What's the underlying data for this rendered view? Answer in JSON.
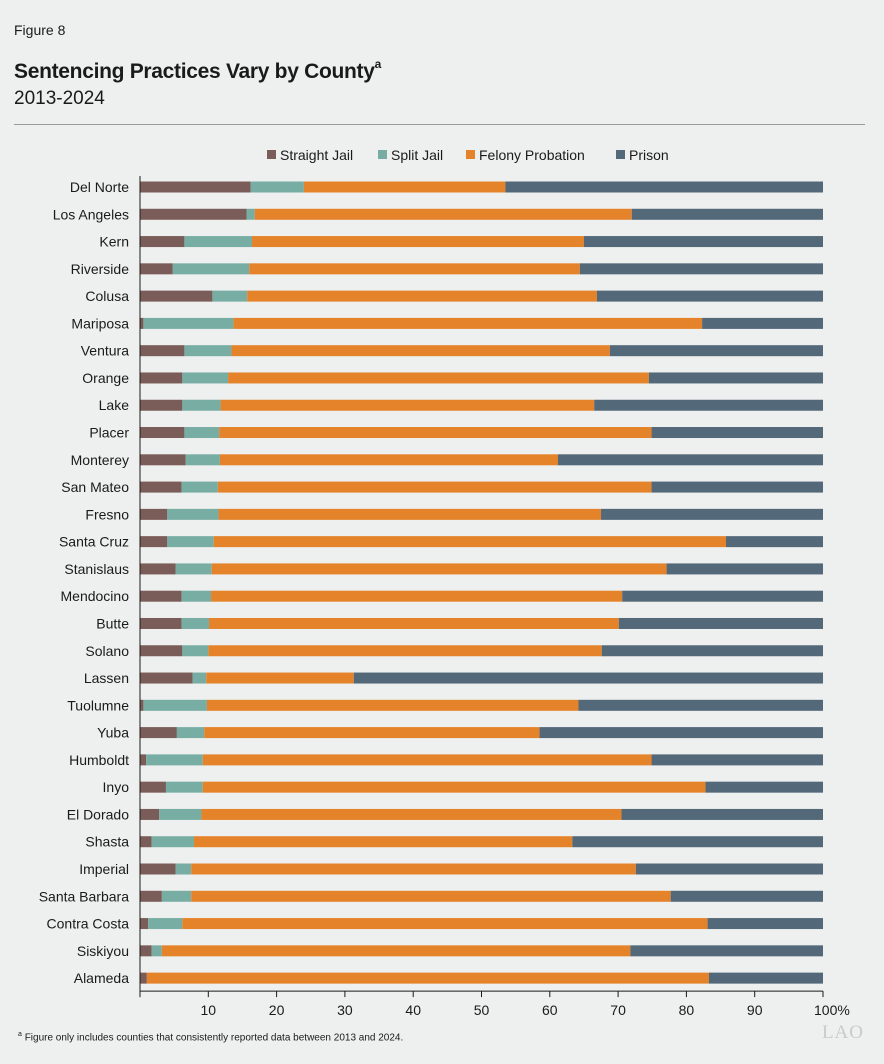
{
  "figure_label": "Figure 8",
  "title": "Sentencing Practices Vary by County",
  "title_superscript": "a",
  "subtitle": "2013-2024",
  "footnote_marker": "a",
  "footnote": "Figure only includes counties that consistently reported data between 2013 and 2024.",
  "logo": "LAO",
  "chart_data": {
    "type": "bar",
    "orientation": "horizontal",
    "stacked": true,
    "categories": [
      "Del Norte",
      "Los Angeles",
      "Kern",
      "Riverside",
      "Colusa",
      "Mariposa",
      "Ventura",
      "Orange",
      "Lake",
      "Placer",
      "Monterey",
      "San Mateo",
      "Fresno",
      "Santa Cruz",
      "Stanislaus",
      "Mendocino",
      "Butte",
      "Solano",
      "Lassen",
      "Tuolumne",
      "Yuba",
      "Humboldt",
      "Inyo",
      "El Dorado",
      "Shasta",
      "Imperial",
      "Santa Barbara",
      "Contra Costa",
      "Siskiyou",
      "Alameda"
    ],
    "series": [
      {
        "name": "Straight Jail",
        "color": "#7a5c58",
        "values": [
          16.2,
          15.6,
          6.5,
          4.8,
          10.6,
          0.5,
          6.5,
          6.2,
          6.2,
          6.5,
          6.7,
          6.1,
          4.0,
          4.0,
          5.2,
          6.1,
          6.1,
          6.2,
          7.7,
          0.5,
          5.4,
          0.9,
          3.8,
          2.8,
          1.7,
          5.2,
          3.2,
          1.2,
          1.7,
          1.0
        ]
      },
      {
        "name": "Split Jail",
        "color": "#78ada4",
        "values": [
          7.8,
          1.2,
          9.9,
          11.2,
          5.1,
          13.2,
          6.9,
          6.7,
          5.6,
          5.1,
          5.0,
          5.3,
          7.5,
          6.8,
          5.3,
          4.3,
          4.0,
          3.8,
          2.0,
          9.3,
          4.0,
          8.3,
          5.4,
          6.2,
          6.2,
          2.3,
          4.3,
          5.0,
          1.5,
          0.0
        ]
      },
      {
        "name": "Felony Probation",
        "color": "#e5832a",
        "values": [
          29.5,
          55.2,
          48.6,
          48.4,
          51.2,
          68.6,
          55.4,
          61.6,
          54.7,
          63.3,
          49.5,
          63.5,
          56.0,
          75.0,
          66.6,
          60.2,
          60.0,
          57.6,
          21.6,
          54.4,
          49.1,
          65.7,
          73.6,
          61.5,
          55.4,
          65.1,
          70.2,
          76.9,
          68.6,
          82.3
        ]
      },
      {
        "name": "Prison",
        "color": "#536878",
        "values": [
          46.5,
          28.0,
          35.0,
          35.6,
          33.1,
          17.7,
          31.2,
          25.5,
          33.5,
          25.1,
          38.8,
          25.1,
          32.5,
          14.2,
          22.9,
          29.4,
          29.9,
          32.4,
          68.7,
          35.8,
          41.5,
          25.1,
          17.2,
          29.5,
          36.7,
          27.4,
          22.3,
          16.9,
          28.2,
          16.7
        ]
      }
    ],
    "xlim": [
      0,
      100
    ],
    "xticks": [
      "",
      "10",
      "20",
      "30",
      "40",
      "50",
      "60",
      "70",
      "80",
      "90",
      "100%"
    ],
    "legend_position": "top-center",
    "grid": false
  }
}
